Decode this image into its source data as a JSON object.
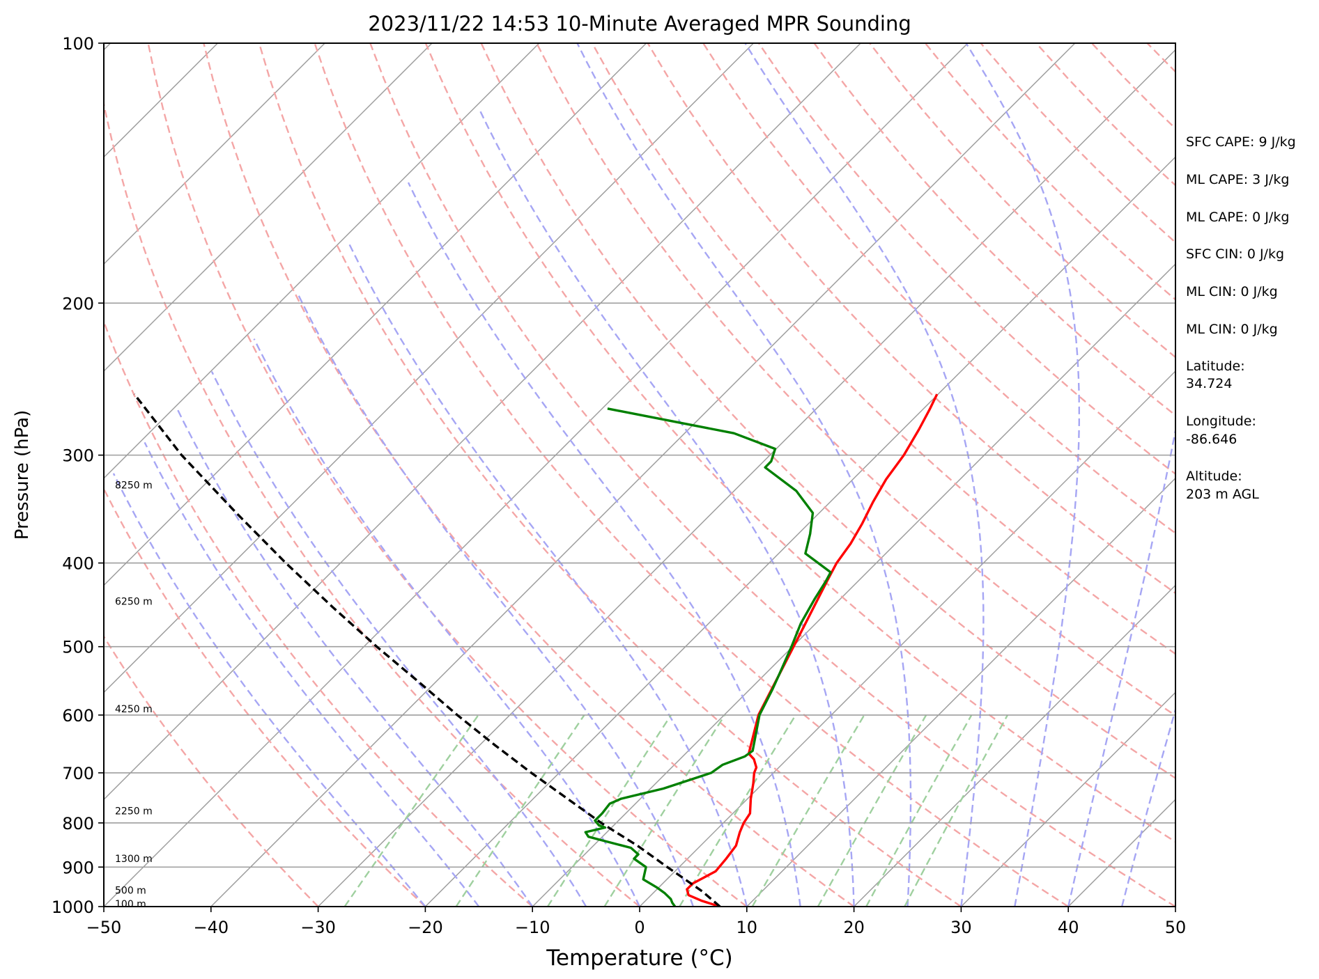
{
  "chart_data": {
    "type": "line",
    "title": "2023/11/22 14:53 10-Minute Averaged MPR Sounding",
    "xlabel": "Temperature (°C)",
    "ylabel": "Pressure (hPa)",
    "xlim": [
      -50,
      50
    ],
    "ylim": [
      1000,
      100
    ],
    "y_scale": "log",
    "skew": "skew-T",
    "grid": true,
    "xticks": [
      "−50",
      "−40",
      "−30",
      "−20",
      "−10",
      "0",
      "10",
      "20",
      "30",
      "40",
      "50"
    ],
    "yticks": [
      "100",
      "200",
      "300",
      "400",
      "500",
      "600",
      "700",
      "800",
      "900",
      "1000"
    ],
    "colors": {
      "temperature": "#ff0000",
      "dewpoint": "#008000",
      "parcel": "#000000",
      "isotherm": "#9e9e9e",
      "dry_adiabat": "#f4a6a6",
      "moist_adiabat": "#a6a6f4",
      "mixing_ratio": "#9fd09f"
    },
    "series": [
      {
        "key": "temperature",
        "points": [
          [
            1000,
            7.5
          ],
          [
            985,
            5.3
          ],
          [
            970,
            3.5
          ],
          [
            955,
            2.8
          ],
          [
            940,
            2.8
          ],
          [
            910,
            3.8
          ],
          [
            880,
            3.6
          ],
          [
            850,
            3.3
          ],
          [
            820,
            2.4
          ],
          [
            800,
            1.9
          ],
          [
            780,
            1.6
          ],
          [
            750,
            0.3
          ],
          [
            720,
            -0.9
          ],
          [
            700,
            -1.8
          ],
          [
            690,
            -2.1
          ],
          [
            675,
            -3.1
          ],
          [
            665,
            -4.1
          ],
          [
            600,
            -6.8
          ],
          [
            540,
            -8.6
          ],
          [
            480,
            -10.6
          ],
          [
            420,
            -12.9
          ],
          [
            400,
            -13.7
          ],
          [
            380,
            -14.2
          ],
          [
            360,
            -15.0
          ],
          [
            340,
            -16.0
          ],
          [
            320,
            -16.9
          ],
          [
            300,
            -17.5
          ],
          [
            280,
            -18.5
          ],
          [
            265,
            -19.4
          ],
          [
            255,
            -20.1
          ]
        ]
      },
      {
        "key": "dewpoint",
        "points": [
          [
            1000,
            3.3
          ],
          [
            990,
            2.7
          ],
          [
            980,
            2.2
          ],
          [
            965,
            1.1
          ],
          [
            950,
            -0.2
          ],
          [
            930,
            -2.2
          ],
          [
            900,
            -3.1
          ],
          [
            880,
            -5.0
          ],
          [
            870,
            -5.0
          ],
          [
            855,
            -6.3
          ],
          [
            840,
            -9.3
          ],
          [
            830,
            -11.3
          ],
          [
            820,
            -12.0
          ],
          [
            810,
            -10.6
          ],
          [
            805,
            -11.4
          ],
          [
            795,
            -12.2
          ],
          [
            780,
            -12.2
          ],
          [
            760,
            -12.4
          ],
          [
            750,
            -11.8
          ],
          [
            730,
            -8.8
          ],
          [
            700,
            -5.8
          ],
          [
            685,
            -5.5
          ],
          [
            670,
            -4.2
          ],
          [
            660,
            -4.0
          ],
          [
            600,
            -6.7
          ],
          [
            560,
            -7.9
          ],
          [
            540,
            -8.6
          ],
          [
            500,
            -10.1
          ],
          [
            470,
            -11.4
          ],
          [
            440,
            -12.4
          ],
          [
            420,
            -13.0
          ],
          [
            410,
            -13.4
          ],
          [
            390,
            -17.5
          ],
          [
            370,
            -18.9
          ],
          [
            350,
            -20.6
          ],
          [
            330,
            -24.2
          ],
          [
            310,
            -29.3
          ],
          [
            305,
            -29.3
          ],
          [
            295,
            -30.1
          ],
          [
            283,
            -35.4
          ],
          [
            265,
            -49.5
          ]
        ]
      },
      {
        "key": "parcel",
        "points": [
          [
            1000,
            7.5
          ],
          [
            960,
            4.4
          ],
          [
            930,
            1.7
          ],
          [
            900,
            -1.1
          ],
          [
            850,
            -5.9
          ],
          [
            800,
            -11.4
          ],
          [
            750,
            -16.8
          ],
          [
            700,
            -22.6
          ],
          [
            650,
            -28.6
          ],
          [
            600,
            -34.9
          ],
          [
            550,
            -41.5
          ],
          [
            500,
            -48.8
          ],
          [
            450,
            -56.6
          ],
          [
            400,
            -65.1
          ],
          [
            350,
            -74.4
          ],
          [
            300,
            -84.9
          ],
          [
            255,
            -95.0
          ]
        ]
      }
    ],
    "height_labels": [
      "100 m",
      "500 m",
      "1300 m",
      "2250 m",
      "4250 m",
      "6250 m",
      "8250 m"
    ],
    "height_label_pressures": [
      993,
      957,
      880,
      775,
      590,
      443,
      325
    ],
    "info": {
      "sfc_cape": "SFC CAPE: 9 J/kg",
      "ml_cape": "ML CAPE: 3 J/kg",
      "ml_cape_2": "ML CAPE: 0 J/kg",
      "sfc_cin": "SFC CIN: 0 J/kg",
      "ml_cin": "ML CIN: 0 J/kg",
      "ml_cin_2": "ML CIN: 0 J/kg",
      "latitude_label": "Latitude:",
      "latitude_value": "34.724",
      "longitude_label": "Longitude:",
      "longitude_value": "-86.646",
      "altitude_label": "Altitude:",
      "altitude_value": "203 m AGL"
    }
  }
}
